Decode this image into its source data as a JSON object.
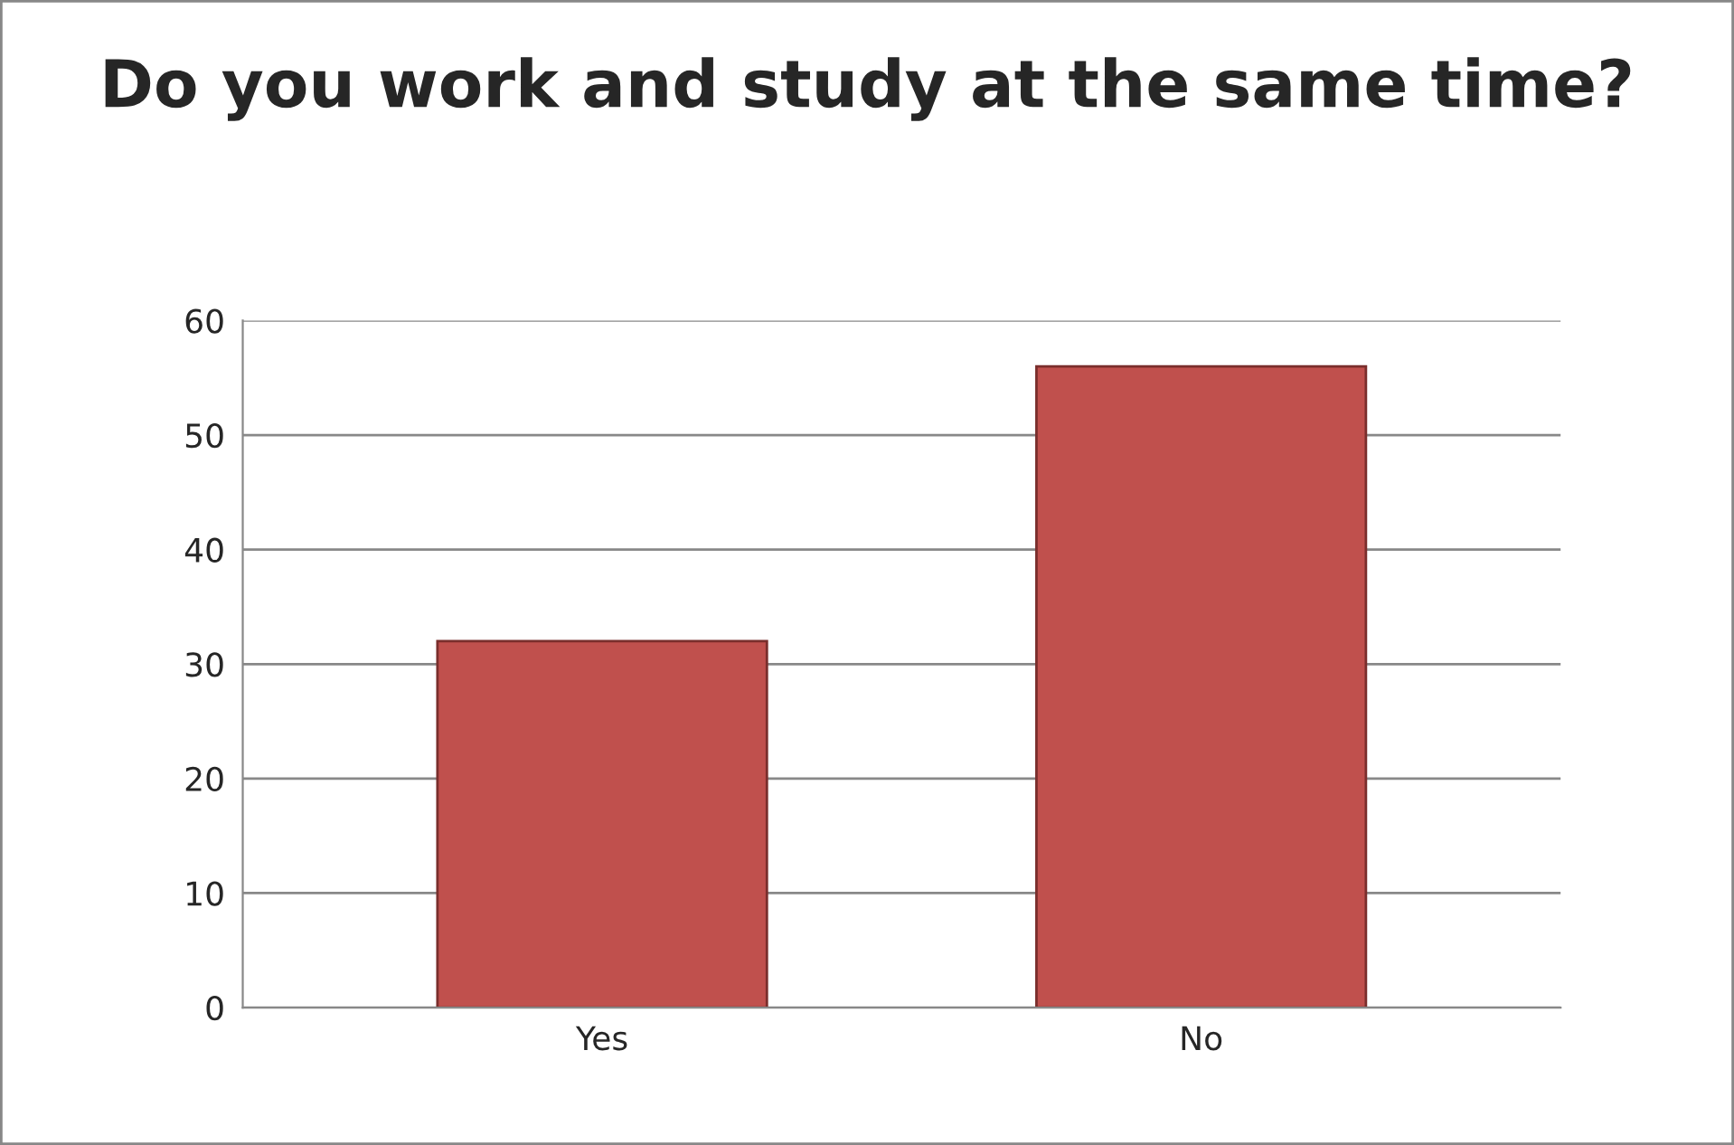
{
  "chart_data": {
    "type": "bar",
    "title": "Do you work and study at the same time?",
    "categories": [
      "Yes",
      "No"
    ],
    "values": [
      32,
      56
    ],
    "color": "#c0504d",
    "ylim": [
      0,
      60
    ],
    "yticks": [
      0,
      10,
      20,
      30,
      40,
      50,
      60
    ],
    "grid": "y",
    "legend": false
  }
}
